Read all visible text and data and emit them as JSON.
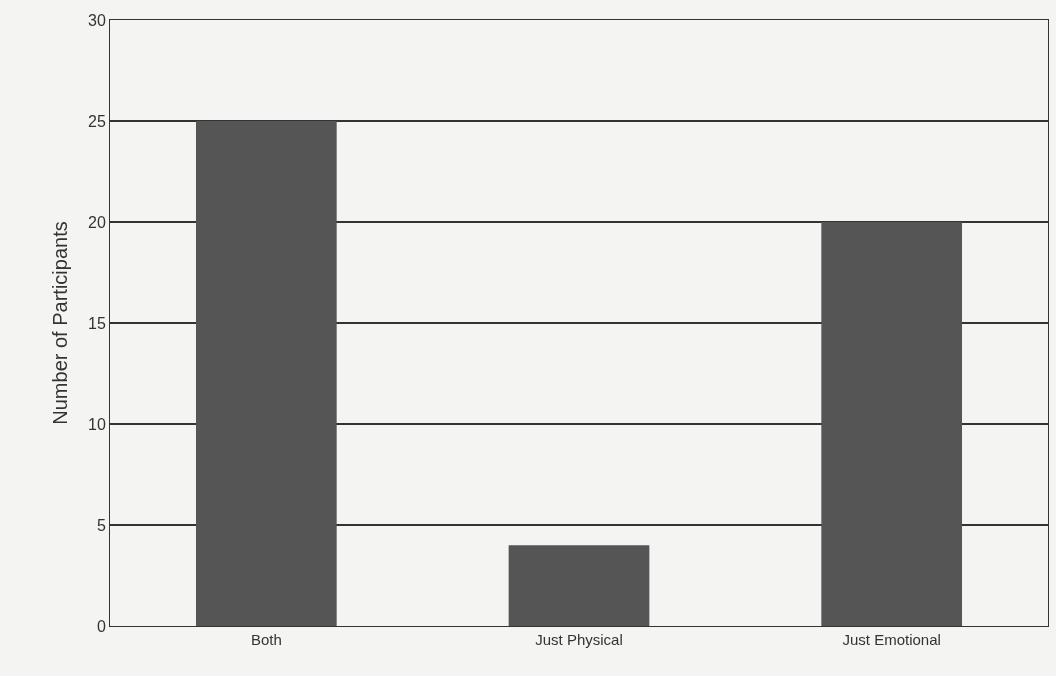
{
  "chart_data": {
    "type": "bar",
    "ylabel": "Number of Participants",
    "categories": [
      "Both",
      "Just Physical",
      "Just Emotional"
    ],
    "values": [
      25,
      4,
      20
    ],
    "color": "#555555",
    "ylim": [
      0,
      30
    ],
    "yticks": [
      0,
      5,
      10,
      15,
      20,
      25,
      30
    ],
    "grid": "y"
  }
}
